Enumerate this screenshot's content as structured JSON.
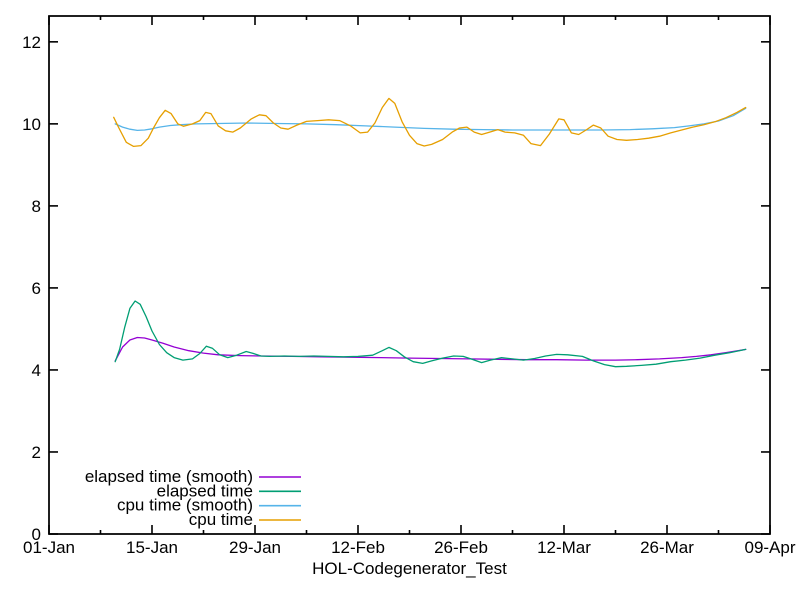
{
  "figure": {
    "background": "#ffffff",
    "text_color": "#000000"
  },
  "chart_data": {
    "type": "line",
    "title": "",
    "xlabel": "HOL-Codegenerator_Test",
    "ylabel": "",
    "grid": false,
    "legend_position": "inside bottom-left",
    "x_axis": {
      "unit": "days since 01-Jan",
      "range_days": [
        0,
        98
      ],
      "major_ticks": [
        {
          "day": 0,
          "label": "01-Jan"
        },
        {
          "day": 14,
          "label": "15-Jan"
        },
        {
          "day": 28,
          "label": "29-Jan"
        },
        {
          "day": 42,
          "label": "12-Feb"
        },
        {
          "day": 56,
          "label": "26-Feb"
        },
        {
          "day": 70,
          "label": "12-Mar"
        },
        {
          "day": 84,
          "label": "26-Mar"
        },
        {
          "day": 98,
          "label": "09-Apr"
        }
      ],
      "minor_ticks_days": [
        7,
        21,
        35,
        49,
        63,
        77,
        91
      ]
    },
    "y_axis": {
      "range": [
        0,
        12.63
      ],
      "major_ticks": [
        0,
        2,
        4,
        6,
        8,
        10,
        12
      ]
    },
    "series": [
      {
        "name": "elapsed time (smooth)",
        "color": "#9400d3",
        "points": [
          [
            9,
            4.22
          ],
          [
            10,
            4.56
          ],
          [
            11,
            4.73
          ],
          [
            12,
            4.79
          ],
          [
            13,
            4.78
          ],
          [
            14,
            4.73
          ],
          [
            15.5,
            4.65
          ],
          [
            17,
            4.56
          ],
          [
            19,
            4.47
          ],
          [
            21,
            4.41
          ],
          [
            23,
            4.37
          ],
          [
            26,
            4.35
          ],
          [
            29,
            4.34
          ],
          [
            33,
            4.33
          ],
          [
            37,
            4.32
          ],
          [
            41,
            4.31
          ],
          [
            45,
            4.3
          ],
          [
            49,
            4.29
          ],
          [
            53,
            4.28
          ],
          [
            57,
            4.27
          ],
          [
            61,
            4.26
          ],
          [
            65,
            4.25
          ],
          [
            69,
            4.25
          ],
          [
            73,
            4.24
          ],
          [
            77,
            4.24
          ],
          [
            80,
            4.25
          ],
          [
            83,
            4.27
          ],
          [
            86,
            4.3
          ],
          [
            88,
            4.33
          ],
          [
            90,
            4.37
          ],
          [
            92,
            4.42
          ],
          [
            94,
            4.48
          ],
          [
            94.7,
            4.5
          ]
        ]
      },
      {
        "name": "elapsed time",
        "color": "#009e73",
        "points": [
          [
            9,
            4.2
          ],
          [
            9.6,
            4.5
          ],
          [
            10.3,
            5.05
          ],
          [
            11,
            5.5
          ],
          [
            11.7,
            5.68
          ],
          [
            12.4,
            5.6
          ],
          [
            13.2,
            5.3
          ],
          [
            14,
            4.95
          ],
          [
            15,
            4.62
          ],
          [
            16,
            4.42
          ],
          [
            17,
            4.3
          ],
          [
            18.2,
            4.24
          ],
          [
            19.5,
            4.27
          ],
          [
            20.5,
            4.4
          ],
          [
            21.4,
            4.58
          ],
          [
            22.2,
            4.53
          ],
          [
            23.2,
            4.37
          ],
          [
            24.3,
            4.3
          ],
          [
            25.5,
            4.36
          ],
          [
            26.8,
            4.45
          ],
          [
            27.8,
            4.4
          ],
          [
            28.8,
            4.34
          ],
          [
            30,
            4.33
          ],
          [
            32,
            4.34
          ],
          [
            34,
            4.33
          ],
          [
            36,
            4.34
          ],
          [
            38,
            4.33
          ],
          [
            40,
            4.32
          ],
          [
            42,
            4.33
          ],
          [
            44,
            4.36
          ],
          [
            45.3,
            4.47
          ],
          [
            46.2,
            4.55
          ],
          [
            47.2,
            4.47
          ],
          [
            48.3,
            4.32
          ],
          [
            49.5,
            4.2
          ],
          [
            50.8,
            4.16
          ],
          [
            52,
            4.22
          ],
          [
            53.5,
            4.29
          ],
          [
            55,
            4.34
          ],
          [
            56.3,
            4.33
          ],
          [
            57.5,
            4.26
          ],
          [
            58.8,
            4.18
          ],
          [
            60,
            4.24
          ],
          [
            61.5,
            4.3
          ],
          [
            63,
            4.27
          ],
          [
            64.5,
            4.24
          ],
          [
            66,
            4.28
          ],
          [
            67.5,
            4.34
          ],
          [
            69,
            4.38
          ],
          [
            70.5,
            4.37
          ],
          [
            72.5,
            4.33
          ],
          [
            74,
            4.22
          ],
          [
            75.5,
            4.13
          ],
          [
            77,
            4.08
          ],
          [
            78.5,
            4.09
          ],
          [
            80.5,
            4.11
          ],
          [
            82.5,
            4.14
          ],
          [
            84.5,
            4.2
          ],
          [
            86.5,
            4.24
          ],
          [
            88.5,
            4.29
          ],
          [
            90.5,
            4.36
          ],
          [
            92.5,
            4.42
          ],
          [
            94.7,
            4.5
          ]
        ]
      },
      {
        "name": "cpu time (smooth)",
        "color": "#56b4e9",
        "points": [
          [
            9,
            10.0
          ],
          [
            10,
            9.92
          ],
          [
            11,
            9.87
          ],
          [
            12,
            9.84
          ],
          [
            13,
            9.85
          ],
          [
            14,
            9.88
          ],
          [
            15,
            9.92
          ],
          [
            16.5,
            9.96
          ],
          [
            18,
            9.98
          ],
          [
            20,
            10.0
          ],
          [
            23,
            10.01
          ],
          [
            27,
            10.02
          ],
          [
            31,
            10.01
          ],
          [
            35,
            10.0
          ],
          [
            39,
            9.98
          ],
          [
            43,
            9.95
          ],
          [
            47,
            9.92
          ],
          [
            51,
            9.89
          ],
          [
            55,
            9.87
          ],
          [
            59,
            9.86
          ],
          [
            63,
            9.85
          ],
          [
            67,
            9.85
          ],
          [
            71,
            9.85
          ],
          [
            75,
            9.85
          ],
          [
            79,
            9.86
          ],
          [
            82,
            9.88
          ],
          [
            85,
            9.91
          ],
          [
            87,
            9.95
          ],
          [
            89,
            10.0
          ],
          [
            91,
            10.07
          ],
          [
            93,
            10.2
          ],
          [
            94.7,
            10.38
          ]
        ]
      },
      {
        "name": "cpu time",
        "color": "#e69f00",
        "points": [
          [
            8.8,
            10.16
          ],
          [
            9.5,
            9.9
          ],
          [
            10.5,
            9.55
          ],
          [
            11.5,
            9.45
          ],
          [
            12.5,
            9.47
          ],
          [
            13.5,
            9.65
          ],
          [
            14.2,
            9.9
          ],
          [
            15,
            10.15
          ],
          [
            15.8,
            10.33
          ],
          [
            16.6,
            10.25
          ],
          [
            17.5,
            10.0
          ],
          [
            18.3,
            9.94
          ],
          [
            19.5,
            10.0
          ],
          [
            20.5,
            10.08
          ],
          [
            21.3,
            10.28
          ],
          [
            22,
            10.25
          ],
          [
            23,
            9.95
          ],
          [
            24,
            9.83
          ],
          [
            25,
            9.8
          ],
          [
            26,
            9.9
          ],
          [
            27.5,
            10.12
          ],
          [
            28.6,
            10.22
          ],
          [
            29.5,
            10.2
          ],
          [
            30.5,
            10.02
          ],
          [
            31.5,
            9.9
          ],
          [
            32.5,
            9.87
          ],
          [
            33.7,
            9.97
          ],
          [
            35,
            10.06
          ],
          [
            36.5,
            10.08
          ],
          [
            38,
            10.1
          ],
          [
            39.5,
            10.08
          ],
          [
            41,
            9.95
          ],
          [
            42.3,
            9.78
          ],
          [
            43.3,
            9.8
          ],
          [
            44.3,
            10.02
          ],
          [
            45.3,
            10.4
          ],
          [
            46.2,
            10.62
          ],
          [
            47,
            10.5
          ],
          [
            48,
            10.05
          ],
          [
            49,
            9.72
          ],
          [
            50,
            9.52
          ],
          [
            51,
            9.46
          ],
          [
            52,
            9.5
          ],
          [
            53.5,
            9.62
          ],
          [
            54.8,
            9.8
          ],
          [
            55.8,
            9.9
          ],
          [
            56.8,
            9.92
          ],
          [
            57.8,
            9.8
          ],
          [
            58.8,
            9.74
          ],
          [
            59.9,
            9.8
          ],
          [
            61,
            9.86
          ],
          [
            62,
            9.8
          ],
          [
            63.3,
            9.78
          ],
          [
            64.5,
            9.72
          ],
          [
            65.5,
            9.52
          ],
          [
            66.8,
            9.47
          ],
          [
            68,
            9.75
          ],
          [
            69.3,
            10.12
          ],
          [
            70,
            10.1
          ],
          [
            71,
            9.78
          ],
          [
            72,
            9.74
          ],
          [
            73,
            9.85
          ],
          [
            74,
            9.97
          ],
          [
            75,
            9.9
          ],
          [
            76,
            9.7
          ],
          [
            77.2,
            9.62
          ],
          [
            78.5,
            9.6
          ],
          [
            80,
            9.62
          ],
          [
            81.5,
            9.65
          ],
          [
            83,
            9.7
          ],
          [
            84.5,
            9.78
          ],
          [
            86,
            9.85
          ],
          [
            87.5,
            9.92
          ],
          [
            89,
            9.98
          ],
          [
            90.5,
            10.05
          ],
          [
            92,
            10.15
          ],
          [
            93.5,
            10.28
          ],
          [
            94.7,
            10.4
          ]
        ]
      }
    ]
  }
}
